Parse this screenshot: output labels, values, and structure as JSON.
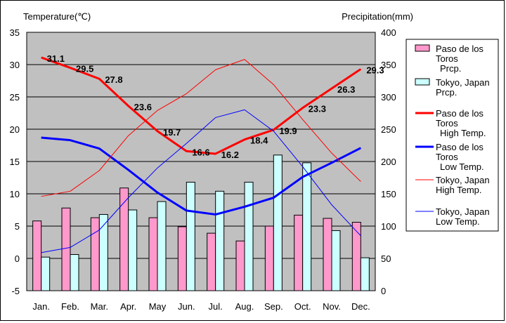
{
  "chart_data": {
    "type": "bar",
    "left_axis_label": "Temperature(℃)",
    "right_axis_label": "Precipitation(mm)",
    "categories": [
      "Jan.",
      "Feb.",
      "Mar.",
      "Apr.",
      "May",
      "Jun.",
      "Jul.",
      "Aug.",
      "Sep.",
      "Oct.",
      "Nov.",
      "Dec."
    ],
    "ylim_left": [
      -5,
      35
    ],
    "yticks_left": [
      "35",
      "30",
      "25",
      "20",
      "15",
      "10",
      "5",
      "0",
      "-5"
    ],
    "ylim_right": [
      0,
      400
    ],
    "yticks_right": [
      "400",
      "350",
      "300",
      "250",
      "200",
      "150",
      "100",
      "50",
      "0"
    ],
    "grid": true,
    "legend_position": "right",
    "bar_series": [
      {
        "name_lines": [
          "Paso de los",
          "Toros",
          "Prcp."
        ],
        "color": "#ff99cc",
        "values": [
          108,
          128,
          113,
          159,
          113,
          99,
          89,
          77,
          100,
          117,
          112,
          106
        ]
      },
      {
        "name_lines": [
          "Tokyo, Japan",
          "Prcp."
        ],
        "color": "#ccffff",
        "values": [
          52,
          56,
          118,
          125,
          138,
          168,
          154,
          168,
          210,
          198,
          93,
          51
        ]
      }
    ],
    "line_series": [
      {
        "name_lines": [
          "Paso de los",
          "Toros",
          "High Temp."
        ],
        "color": "#ff0000",
        "width": 3,
        "values": [
          31.1,
          29.5,
          27.8,
          23.6,
          19.7,
          16.6,
          16.2,
          18.4,
          19.9,
          23.3,
          26.3,
          29.3
        ],
        "labels": [
          "31.1",
          "29.5",
          "27.8",
          "23.6",
          "19.7",
          "16.6",
          "16.2",
          "18.4",
          "19.9",
          "23.3",
          "26.3",
          "29.3"
        ]
      },
      {
        "name_lines": [
          "Paso de los",
          "Toros",
          "Low Temp."
        ],
        "color": "#0000ff",
        "width": 3,
        "values": [
          18.7,
          18.3,
          17.0,
          13.7,
          10.2,
          7.4,
          6.8,
          8.0,
          9.4,
          12.6,
          14.8,
          17.1
        ]
      },
      {
        "name_lines": [
          "Tokyo, Japan",
          "High Temp."
        ],
        "color": "#ff0000",
        "width": 1,
        "values": [
          9.6,
          10.4,
          13.6,
          19.0,
          22.9,
          25.5,
          29.2,
          30.8,
          26.9,
          21.5,
          16.3,
          11.9
        ]
      },
      {
        "name_lines": [
          "Tokyo, Japan",
          "Low Temp."
        ],
        "color": "#0000ff",
        "width": 1,
        "values": [
          0.9,
          1.7,
          4.4,
          9.4,
          14.0,
          17.8,
          21.8,
          23.0,
          19.7,
          14.2,
          8.3,
          3.5
        ]
      }
    ]
  }
}
